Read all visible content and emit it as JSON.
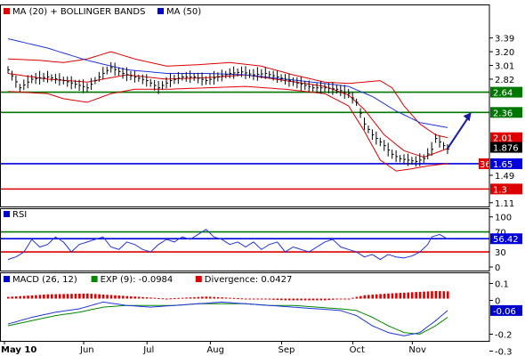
{
  "legend_price": [
    {
      "label": "MA (20) + BOLLINGER BANDS",
      "color": "#dd0000"
    },
    {
      "label": "MA (50)",
      "color": "#0000cc"
    }
  ],
  "legend_rsi": [
    {
      "label": "RSI",
      "color": "#0000cc"
    }
  ],
  "legend_macd": [
    {
      "label": "MACD (26, 12)",
      "color": "#0000cc"
    },
    {
      "label": "EXP (9): -0.0984",
      "color": "#008800"
    },
    {
      "label": "Divergence: 0.0427",
      "color": "#dd0000"
    }
  ],
  "colors": {
    "price": "#000000",
    "ma20": "#dd0000",
    "ma50": "#2233dd",
    "resistance": "#007700",
    "support_blue": "#0000dd",
    "support_red": "#dd0000",
    "rsi": "#2233dd",
    "rsi_upper": "#007700",
    "rsi_mid": "#0000dd",
    "rsi_lower": "#dd0000",
    "macd": "#2233dd",
    "signal": "#008800",
    "divergence": "#dd0000",
    "arrow": "#1a1aa0",
    "axis": "#000000"
  },
  "chart_data": [
    {
      "type": "line",
      "title": "",
      "series_labels_printed": [
        "MA (20) + BOLLINGER BANDS",
        "MA (50)"
      ],
      "ylim": [
        1.11,
        3.5
      ],
      "y_scale": "linear",
      "y_ticks": [
        "3.39",
        "3.20",
        "3.01",
        "2.82",
        "2.64",
        "2.36",
        "2.01",
        "1.876",
        "1.65",
        "1.49",
        "1.3",
        "1.11"
      ],
      "x_tick_labels": [
        "May 10",
        "Jun",
        "Jul",
        "Aug",
        "Sep",
        "Oct",
        "Nov"
      ],
      "grid": false,
      "levels": [
        {
          "value": 2.64,
          "label": "2.64",
          "color": "#007700"
        },
        {
          "value": 2.36,
          "label": "2.36",
          "color": "#007700"
        },
        {
          "value": 1.65,
          "label": "1.65",
          "color": "#0000dd"
        },
        {
          "value": 1.3,
          "label": "1.3",
          "color": "#dd0000"
        }
      ],
      "value_tags": [
        {
          "value": 2.01,
          "label": "2.01",
          "color": "#dd0000"
        },
        {
          "value": 1.876,
          "label": "1.876",
          "color": "#000000"
        }
      ],
      "partial_tag": {
        "value": 1.65,
        "label": "36",
        "color": "#dd0000"
      },
      "price_anchors": [
        [
          0,
          2.95
        ],
        [
          3,
          2.7
        ],
        [
          6,
          2.82
        ],
        [
          10,
          2.85
        ],
        [
          14,
          2.8
        ],
        [
          17,
          2.75
        ],
        [
          20,
          2.7
        ],
        [
          24,
          2.9
        ],
        [
          26,
          2.98
        ],
        [
          29,
          2.9
        ],
        [
          32,
          2.85
        ],
        [
          35,
          2.8
        ],
        [
          38,
          2.7
        ],
        [
          41,
          2.8
        ],
        [
          44,
          2.85
        ],
        [
          47,
          2.85
        ],
        [
          50,
          2.8
        ],
        [
          53,
          2.85
        ],
        [
          56,
          2.9
        ],
        [
          59,
          2.92
        ],
        [
          62,
          2.88
        ],
        [
          65,
          2.9
        ],
        [
          68,
          2.85
        ],
        [
          71,
          2.8
        ],
        [
          74,
          2.75
        ],
        [
          77,
          2.7
        ],
        [
          80,
          2.7
        ],
        [
          83,
          2.68
        ],
        [
          86,
          2.62
        ],
        [
          88,
          2.5
        ],
        [
          90,
          2.2
        ],
        [
          92,
          2.05
        ],
        [
          95,
          1.9
        ],
        [
          97,
          1.78
        ],
        [
          99,
          1.72
        ],
        [
          101,
          1.7
        ],
        [
          103,
          1.68
        ],
        [
          105,
          1.72
        ],
        [
          107,
          1.85
        ],
        [
          108,
          2.0
        ],
        [
          109,
          1.95
        ],
        [
          111,
          1.85
        ]
      ],
      "ma20_anchors": [
        [
          0,
          2.9
        ],
        [
          10,
          2.82
        ],
        [
          20,
          2.78
        ],
        [
          30,
          2.88
        ],
        [
          40,
          2.82
        ],
        [
          50,
          2.84
        ],
        [
          60,
          2.88
        ],
        [
          70,
          2.8
        ],
        [
          80,
          2.72
        ],
        [
          86,
          2.6
        ],
        [
          90,
          2.4
        ],
        [
          95,
          2.05
        ],
        [
          100,
          1.83
        ],
        [
          105,
          1.74
        ],
        [
          111,
          1.86
        ]
      ],
      "upper_band_anchors": [
        [
          0,
          3.1
        ],
        [
          8,
          3.08
        ],
        [
          14,
          3.05
        ],
        [
          20,
          3.1
        ],
        [
          26,
          3.2
        ],
        [
          32,
          3.1
        ],
        [
          40,
          3.0
        ],
        [
          48,
          3.02
        ],
        [
          56,
          3.05
        ],
        [
          64,
          3.0
        ],
        [
          72,
          2.88
        ],
        [
          80,
          2.78
        ],
        [
          86,
          2.76
        ],
        [
          90,
          2.78
        ],
        [
          94,
          2.8
        ],
        [
          97,
          2.7
        ],
        [
          100,
          2.45
        ],
        [
          104,
          2.2
        ],
        [
          108,
          2.05
        ],
        [
          111,
          2.01
        ]
      ],
      "lower_band_anchors": [
        [
          0,
          2.65
        ],
        [
          10,
          2.62
        ],
        [
          14,
          2.55
        ],
        [
          20,
          2.5
        ],
        [
          26,
          2.62
        ],
        [
          32,
          2.68
        ],
        [
          40,
          2.68
        ],
        [
          50,
          2.7
        ],
        [
          60,
          2.72
        ],
        [
          70,
          2.68
        ],
        [
          80,
          2.62
        ],
        [
          86,
          2.45
        ],
        [
          90,
          2.1
        ],
        [
          94,
          1.7
        ],
        [
          98,
          1.55
        ],
        [
          102,
          1.58
        ],
        [
          106,
          1.62
        ],
        [
          111,
          1.65
        ]
      ],
      "ma50_anchors": [
        [
          0,
          3.38
        ],
        [
          10,
          3.25
        ],
        [
          20,
          3.08
        ],
        [
          30,
          2.95
        ],
        [
          40,
          2.9
        ],
        [
          50,
          2.9
        ],
        [
          60,
          2.88
        ],
        [
          70,
          2.82
        ],
        [
          80,
          2.76
        ],
        [
          86,
          2.72
        ],
        [
          92,
          2.58
        ],
        [
          98,
          2.38
        ],
        [
          104,
          2.22
        ],
        [
          111,
          2.15
        ]
      ],
      "forecast_arrow": {
        "from": [
          111,
          1.86
        ],
        "to": [
          117,
          2.36
        ]
      }
    },
    {
      "type": "line",
      "title": "RSI",
      "ylim": [
        0,
        105
      ],
      "y_ticks": [
        "100",
        "70",
        "56.42",
        "30",
        "0"
      ],
      "x_tick_labels": [
        "May 10",
        "Jun",
        "Jul",
        "Aug",
        "Sep",
        "Oct",
        "Nov"
      ],
      "levels": [
        {
          "value": 70,
          "label": "70",
          "color": "#007700"
        },
        {
          "value": 56.42,
          "label": "56.42",
          "color": "#0000dd"
        },
        {
          "value": 30,
          "label": "30",
          "color": "#dd0000"
        }
      ],
      "anchors": [
        [
          0,
          15
        ],
        [
          2,
          20
        ],
        [
          4,
          30
        ],
        [
          6,
          55
        ],
        [
          8,
          40
        ],
        [
          10,
          45
        ],
        [
          12,
          60
        ],
        [
          14,
          50
        ],
        [
          16,
          30
        ],
        [
          18,
          45
        ],
        [
          20,
          50
        ],
        [
          22,
          55
        ],
        [
          24,
          60
        ],
        [
          26,
          40
        ],
        [
          28,
          35
        ],
        [
          30,
          50
        ],
        [
          32,
          45
        ],
        [
          34,
          35
        ],
        [
          36,
          30
        ],
        [
          38,
          45
        ],
        [
          40,
          55
        ],
        [
          42,
          50
        ],
        [
          44,
          60
        ],
        [
          46,
          55
        ],
        [
          48,
          65
        ],
        [
          50,
          75
        ],
        [
          52,
          60
        ],
        [
          54,
          55
        ],
        [
          56,
          45
        ],
        [
          58,
          50
        ],
        [
          60,
          40
        ],
        [
          62,
          50
        ],
        [
          64,
          35
        ],
        [
          66,
          45
        ],
        [
          68,
          50
        ],
        [
          70,
          30
        ],
        [
          72,
          40
        ],
        [
          74,
          35
        ],
        [
          76,
          30
        ],
        [
          78,
          40
        ],
        [
          80,
          50
        ],
        [
          82,
          55
        ],
        [
          84,
          40
        ],
        [
          86,
          35
        ],
        [
          88,
          30
        ],
        [
          90,
          20
        ],
        [
          92,
          25
        ],
        [
          94,
          15
        ],
        [
          96,
          25
        ],
        [
          98,
          20
        ],
        [
          100,
          18
        ],
        [
          102,
          22
        ],
        [
          104,
          30
        ],
        [
          106,
          45
        ],
        [
          107,
          60
        ],
        [
          109,
          65
        ],
        [
          111,
          56
        ]
      ]
    },
    {
      "type": "line",
      "title": "MACD (26, 12)",
      "series_labels_printed": [
        "MACD (26, 12)",
        "EXP (9): -0.0984",
        "Divergence: 0.0427"
      ],
      "ylim": [
        -0.3,
        0.1
      ],
      "y_ticks": [
        "0.1",
        "0",
        "-0.06",
        "-0.2",
        "-0.3"
      ],
      "x_tick_labels": [
        "May 10",
        "Jun",
        "Jul",
        "Aug",
        "Sep",
        "Oct",
        "Nov"
      ],
      "value_tags": [
        {
          "value": -0.06,
          "label": "-0.06",
          "color": "#0000cc"
        }
      ],
      "macd_anchors": [
        [
          0,
          -0.14
        ],
        [
          6,
          -0.1
        ],
        [
          12,
          -0.07
        ],
        [
          18,
          -0.05
        ],
        [
          24,
          -0.01
        ],
        [
          30,
          -0.03
        ],
        [
          36,
          -0.04
        ],
        [
          42,
          -0.03
        ],
        [
          48,
          -0.02
        ],
        [
          54,
          -0.01
        ],
        [
          60,
          -0.02
        ],
        [
          66,
          -0.03
        ],
        [
          72,
          -0.04
        ],
        [
          78,
          -0.05
        ],
        [
          84,
          -0.06
        ],
        [
          88,
          -0.09
        ],
        [
          92,
          -0.15
        ],
        [
          96,
          -0.19
        ],
        [
          100,
          -0.21
        ],
        [
          104,
          -0.19
        ],
        [
          108,
          -0.12
        ],
        [
          111,
          -0.06
        ]
      ],
      "signal_anchors": [
        [
          0,
          -0.15
        ],
        [
          6,
          -0.12
        ],
        [
          12,
          -0.09
        ],
        [
          18,
          -0.07
        ],
        [
          24,
          -0.04
        ],
        [
          30,
          -0.03
        ],
        [
          36,
          -0.03
        ],
        [
          42,
          -0.03
        ],
        [
          48,
          -0.02
        ],
        [
          54,
          -0.02
        ],
        [
          60,
          -0.02
        ],
        [
          66,
          -0.03
        ],
        [
          72,
          -0.03
        ],
        [
          78,
          -0.04
        ],
        [
          84,
          -0.05
        ],
        [
          88,
          -0.06
        ],
        [
          92,
          -0.1
        ],
        [
          96,
          -0.15
        ],
        [
          100,
          -0.19
        ],
        [
          104,
          -0.2
        ],
        [
          108,
          -0.15
        ],
        [
          111,
          -0.1
        ]
      ],
      "divergence_anchors": [
        [
          0,
          0.01
        ],
        [
          10,
          0.025
        ],
        [
          20,
          0.03
        ],
        [
          30,
          0.015
        ],
        [
          40,
          0.0
        ],
        [
          50,
          0.012
        ],
        [
          60,
          0.0
        ],
        [
          70,
          -0.01
        ],
        [
          80,
          -0.01
        ],
        [
          86,
          0.0
        ],
        [
          90,
          0.02
        ],
        [
          96,
          0.03
        ],
        [
          100,
          0.035
        ],
        [
          104,
          0.04
        ],
        [
          108,
          0.045
        ],
        [
          111,
          0.043
        ]
      ]
    }
  ]
}
